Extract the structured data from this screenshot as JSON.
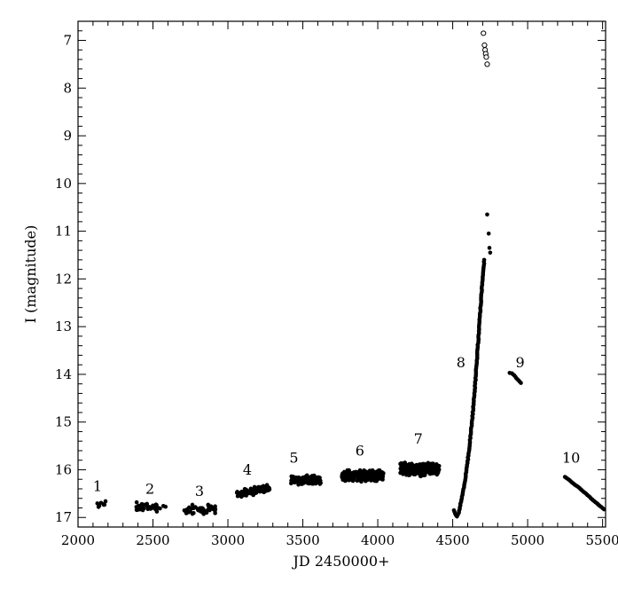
{
  "chart_data": {
    "type": "scatter",
    "title": "",
    "xlabel": "JD 2450000+",
    "ylabel": "I (magnitude)",
    "xlim": [
      2000,
      5520
    ],
    "ylim": [
      6.6,
      17.2
    ],
    "y_inverted": true,
    "xticks": [
      2000,
      2500,
      3000,
      3500,
      4000,
      4500,
      5000,
      5500
    ],
    "yticks": [
      7,
      8,
      9,
      10,
      11,
      12,
      13,
      14,
      15,
      16,
      17
    ],
    "grid": false,
    "marker_color": "#000000",
    "segments": [
      {
        "label": "1",
        "label_pos": [
          2130,
          16.45
        ],
        "x_range": [
          2120,
          2200
        ],
        "y_center": 16.7,
        "y_spread": 0.12,
        "slope": 0,
        "n": 8
      },
      {
        "label": "2",
        "label_pos": [
          2480,
          16.5
        ],
        "x_range": [
          2370,
          2590
        ],
        "y_center": 16.78,
        "y_spread": 0.13,
        "slope": 0,
        "n": 40
      },
      {
        "label": "3",
        "label_pos": [
          2810,
          16.55
        ],
        "x_range": [
          2700,
          2920
        ],
        "y_center": 16.83,
        "y_spread": 0.14,
        "slope": 0,
        "n": 40
      },
      {
        "label": "4",
        "label_pos": [
          3130,
          16.1
        ],
        "x_range": [
          3060,
          3280
        ],
        "y_center": 16.45,
        "y_spread": 0.1,
        "slope": -0.6,
        "n": 120
      },
      {
        "label": "5",
        "label_pos": [
          3440,
          15.85
        ],
        "x_range": [
          3420,
          3620
        ],
        "y_center": 16.22,
        "y_spread": 0.12,
        "slope": 0,
        "n": 160
      },
      {
        "label": "6",
        "label_pos": [
          3880,
          15.7
        ],
        "x_range": [
          3760,
          4040
        ],
        "y_center": 16.12,
        "y_spread": 0.15,
        "slope": 0,
        "n": 350
      },
      {
        "label": "7",
        "label_pos": [
          4270,
          15.45
        ],
        "x_range": [
          4150,
          4410
        ],
        "y_center": 15.98,
        "y_spread": 0.18,
        "slope": 0,
        "n": 320
      },
      {
        "label": "8",
        "label_pos": [
          4555,
          13.85
        ],
        "x_range": [
          4510,
          4740
        ],
        "y_center": null,
        "y_spread": 0,
        "slope": 0,
        "n": 0
      },
      {
        "label": "9",
        "label_pos": [
          4950,
          13.85
        ],
        "x_range": [
          4880,
          4960
        ],
        "y_center": null,
        "y_spread": 0,
        "slope": 0,
        "n": 0
      },
      {
        "label": "10",
        "label_pos": [
          5290,
          15.85
        ],
        "x_range": [
          5250,
          5510
        ],
        "y_center": null,
        "y_spread": 0,
        "slope": 0,
        "n": 0
      }
    ],
    "rise_curve": [
      [
        4510,
        16.85
      ],
      [
        4520,
        16.95
      ],
      [
        4530,
        16.98
      ],
      [
        4540,
        16.9
      ],
      [
        4550,
        16.75
      ],
      [
        4560,
        16.6
      ],
      [
        4570,
        16.45
      ],
      [
        4580,
        16.25
      ],
      [
        4590,
        16.05
      ],
      [
        4600,
        15.82
      ],
      [
        4610,
        15.55
      ],
      [
        4620,
        15.25
      ],
      [
        4630,
        14.95
      ],
      [
        4640,
        14.6
      ],
      [
        4650,
        14.2
      ],
      [
        4660,
        13.75
      ],
      [
        4670,
        13.3
      ],
      [
        4680,
        12.85
      ],
      [
        4690,
        12.4
      ],
      [
        4700,
        12.0
      ],
      [
        4710,
        11.6
      ],
      [
        4730,
        10.65
      ],
      [
        4740,
        11.05
      ],
      [
        4745,
        11.35
      ],
      [
        4750,
        11.45
      ]
    ],
    "peak_open_points": [
      [
        4705,
        6.85
      ],
      [
        4712,
        7.1
      ],
      [
        4716,
        7.2
      ],
      [
        4720,
        7.28
      ],
      [
        4724,
        7.35
      ],
      [
        4730,
        7.5
      ]
    ],
    "segment9_curve": [
      [
        4880,
        13.97
      ],
      [
        4895,
        13.98
      ],
      [
        4910,
        14.02
      ],
      [
        4925,
        14.08
      ],
      [
        4940,
        14.13
      ],
      [
        4955,
        14.18
      ]
    ],
    "segment10_curve": [
      [
        5250,
        16.15
      ],
      [
        5280,
        16.22
      ],
      [
        5310,
        16.3
      ],
      [
        5340,
        16.37
      ],
      [
        5370,
        16.45
      ],
      [
        5400,
        16.53
      ],
      [
        5430,
        16.62
      ],
      [
        5460,
        16.7
      ],
      [
        5490,
        16.78
      ],
      [
        5510,
        16.83
      ]
    ]
  }
}
